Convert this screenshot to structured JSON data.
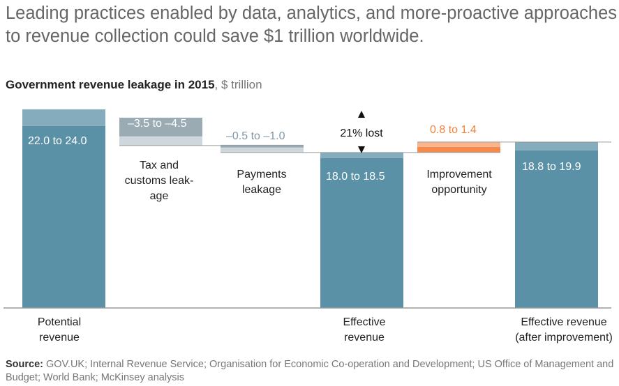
{
  "headline": "Leading practices enabled by data, analytics, and more-proactive approaches to revenue collection could save $1 trillion worldwide.",
  "subtitle": {
    "bold": "Government revenue leakage in 2015",
    "rest": ", $ trillion"
  },
  "source": {
    "label": "Source:",
    "text": " GOV.UK; Internal Revenue Service; Organisation for Economic Co-operation and Development; US Office of Management and Budget; World Bank; McKinsey analysis"
  },
  "colors": {
    "total_dark": "#5a91a6",
    "total_light": "#85acbc",
    "leak_dark": "#9aabb4",
    "leak_light": "#cdd7dc",
    "gain_dark": "#f58a4b",
    "gain_light": "#f9b48e",
    "axis": "#999999",
    "leak_text": "#7f97a6",
    "gain_text": "#f0823f"
  },
  "chart_data": {
    "type": "waterfall",
    "title": "Government revenue leakage in 2015",
    "unit": "$ trillion",
    "steps": [
      {
        "name": "Potential revenue",
        "label_lines": [
          "Potential",
          "revenue"
        ],
        "kind": "total",
        "low": 22.0,
        "high": 24.0,
        "value_label": "22.0 to 24.0"
      },
      {
        "name": "Tax and customs leakage",
        "label_lines": [
          "Tax and",
          "customs leak-",
          "age"
        ],
        "kind": "decrease",
        "low": -3.5,
        "high": -4.5,
        "value_label": "–3.5 to –4.5"
      },
      {
        "name": "Payments leakage",
        "label_lines": [
          "Payments",
          "leakage"
        ],
        "kind": "decrease",
        "low": -0.5,
        "high": -1.0,
        "value_label": "–0.5 to –1.0"
      },
      {
        "name": "Effective revenue",
        "label_lines": [
          "Effective",
          "revenue"
        ],
        "kind": "total",
        "low": 18.0,
        "high": 18.5,
        "value_label": "18.0 to 18.5"
      },
      {
        "name": "Improvement opportunity",
        "label_lines": [
          "Improvement",
          "opportunity"
        ],
        "kind": "increase",
        "low": 0.8,
        "high": 1.4,
        "value_label": "0.8 to 1.4"
      },
      {
        "name": "Effective revenue (after improvement)",
        "label_lines": [
          "Effective revenue",
          "(after improvement)"
        ],
        "kind": "total",
        "low": 18.8,
        "high": 19.9,
        "value_label": "18.8 to 19.9"
      }
    ],
    "annotation": "21% lost",
    "ylim": [
      0,
      24
    ],
    "grid": false,
    "legend": "none"
  }
}
